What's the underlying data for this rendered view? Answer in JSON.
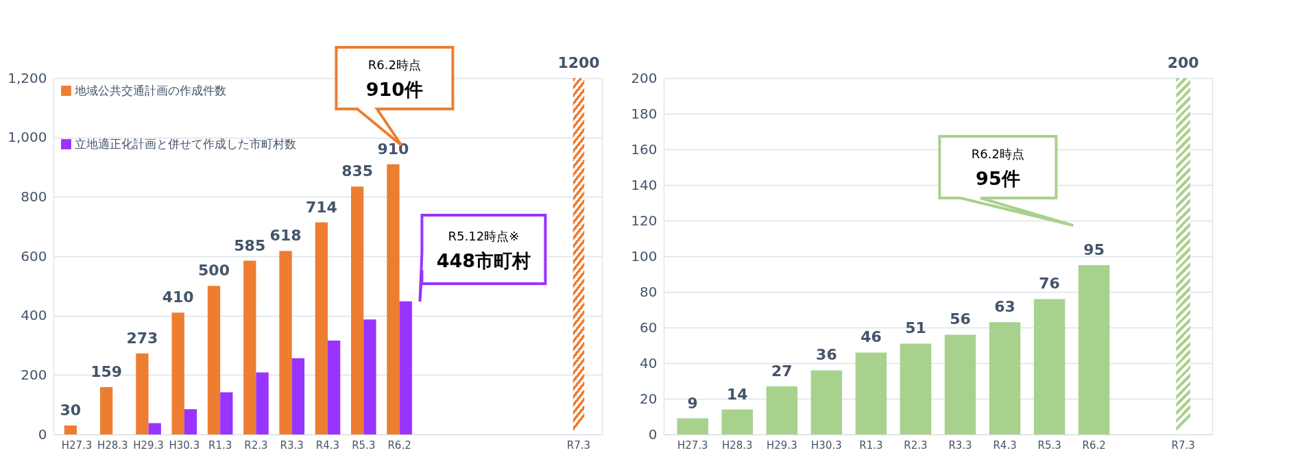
{
  "chart_data": [
    {
      "type": "bar",
      "categories": [
        "H27.3",
        "H28.3",
        "H29.3",
        "H30.3",
        "R1.3",
        "R2.3",
        "R3.3",
        "R4.3",
        "R5.3",
        "R6.2",
        null,
        null,
        null,
        null,
        "R7.3"
      ],
      "series": [
        {
          "name": "地域公共交通計画の作成件数",
          "color": "#ed7d31",
          "values": [
            30,
            159,
            273,
            410,
            500,
            585,
            618,
            714,
            835,
            910,
            null,
            null,
            null,
            null,
            null
          ],
          "value_labels": [
            "30",
            "159",
            "273",
            "410",
            "500",
            "585",
            "618",
            "714",
            "835",
            "910",
            null,
            null,
            null,
            null,
            null
          ]
        },
        {
          "name": "立地適正化計画と併せて作成した市町村数",
          "color": "#9933ff",
          "values": [
            null,
            null,
            38,
            85,
            142,
            209,
            257,
            316,
            387,
            448,
            null,
            null,
            null,
            null,
            null
          ]
        },
        {
          "color": "#ed7d31",
          "values": [
            null,
            null,
            null,
            null,
            null,
            null,
            null,
            null,
            null,
            null,
            null,
            null,
            null,
            null,
            1200
          ],
          "value_labels": [
            null,
            null,
            null,
            null,
            null,
            null,
            null,
            null,
            null,
            null,
            null,
            null,
            null,
            null,
            "1200"
          ]
        }
      ],
      "ylim": [
        0,
        1200
      ],
      "yticks": [
        0,
        200,
        400,
        600,
        800,
        {
          "value": 1000,
          "label": "1,000"
        },
        {
          "value": 1200,
          "label": "1,200"
        }
      ],
      "grid": "y",
      "legend": "top left",
      "annotations": [
        "R6.2時点\n910件",
        "R5.12時点※\n448市町村"
      ]
    },
    {
      "type": "bar",
      "categories": [
        "H27.3",
        "H28.3",
        "H29.3",
        "H30.3",
        "R1.3",
        "R2.3",
        "R3.3",
        "R4.3",
        "R5.3",
        "R6.2",
        null,
        "R7.3"
      ],
      "series": [
        {
          "color": "#a9d18e",
          "values": [
            9,
            14,
            27,
            36,
            46,
            51,
            56,
            63,
            76,
            95,
            null,
            null
          ],
          "value_labels": [
            "9",
            "14",
            "27",
            "36",
            "46",
            "51",
            "56",
            "63",
            "76",
            "95",
            null,
            null
          ]
        },
        {
          "color": "#a9d18e",
          "values": [
            null,
            null,
            null,
            null,
            null,
            null,
            null,
            null,
            null,
            null,
            null,
            200
          ],
          "value_labels": [
            null,
            null,
            null,
            null,
            null,
            null,
            null,
            null,
            null,
            null,
            null,
            "200"
          ]
        }
      ],
      "ylim": [
        0,
        200
      ],
      "yticks": [
        0,
        20,
        40,
        60,
        80,
        100,
        120,
        140,
        160,
        180,
        200
      ],
      "grid": "y",
      "annotations": [
        "R6.2時点\n95件"
      ]
    }
  ]
}
